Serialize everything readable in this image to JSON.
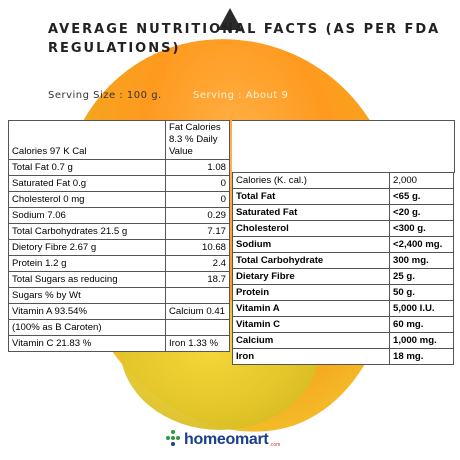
{
  "title": "AVERAGE NUTRITIONAL FACTS (AS PER FDA REGULATIONS)",
  "serving_size": "Serving Size : 100 g.",
  "servings": "Serving : About 9",
  "left_table": {
    "header": {
      "col1": "Calories 97 K Cal",
      "col2": "Fat Calories 8.3 % Daily Value"
    },
    "rows": [
      {
        "label": "Total Fat 0.7 g",
        "value": "1.08"
      },
      {
        "label": "Saturated Fat 0.g",
        "value": "0"
      },
      {
        "label": "Cholesterol 0 mg",
        "value": "0"
      },
      {
        "label": "Sodium 7.06",
        "value": "0.29"
      },
      {
        "label": "Total Carbohydrates 21.5 g",
        "value": "7.17"
      },
      {
        "label": "Dietory Fibre 2.67 g",
        "value": "10.68"
      },
      {
        "label": "Protein 1.2 g",
        "value": "2.4"
      },
      {
        "label": "Total Sugars as reducing",
        "value": "18.7"
      },
      {
        "label": "Sugars % by Wt",
        "value": ""
      },
      {
        "label": "Vitamin A 93.54%",
        "value": "Calcium 0.41"
      },
      {
        "label": "(100% as B Caroten)",
        "value": ""
      },
      {
        "label": "Vitamin C 21.83 %",
        "value": "Iron 1.33 %"
      }
    ]
  },
  "right_table": {
    "rows": [
      {
        "label": "Calories (K. cal.)",
        "value": "2,000"
      },
      {
        "label": "Total Fat",
        "value": "<65 g."
      },
      {
        "label": "Saturated Fat",
        "value": "<20 g."
      },
      {
        "label": "Cholesterol",
        "value": "<300 g."
      },
      {
        "label": "Sodium",
        "value": "<2,400 mg."
      },
      {
        "label": "Total Carbohydrate",
        "value": "300 mg."
      },
      {
        "label": "Dietary Fibre",
        "value": "25 g."
      },
      {
        "label": "Protein",
        "value": "50 g."
      },
      {
        "label": "Vitamin A",
        "value": "5,000 I.U."
      },
      {
        "label": "Vitamin C",
        "value": "60 mg."
      },
      {
        "label": "Calcium",
        "value": "1,000 mg."
      },
      {
        "label": "Iron",
        "value": "18 mg."
      }
    ]
  },
  "logo": {
    "text": "homeomart",
    "suffix": ".com"
  },
  "colors": {
    "mango_orange": "#ff9a1f",
    "mango_yellow": "#e6c92e",
    "logo_blue": "#1a3f8a",
    "logo_green": "#2e9a3e"
  }
}
